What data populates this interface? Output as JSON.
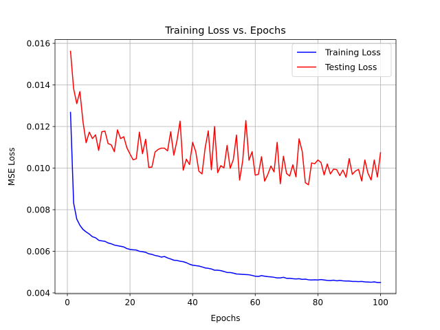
{
  "chart_data": {
    "type": "line",
    "title": "Training Loss vs. Epochs",
    "xlabel": "Epochs",
    "ylabel": "MSE Loss",
    "xlim": [
      -3.95,
      104.95
    ],
    "ylim": [
      0.00396,
      0.01618
    ],
    "x_ticks": [
      0,
      20,
      40,
      60,
      80,
      100
    ],
    "y_ticks": [
      0.004,
      0.006,
      0.008,
      0.01,
      0.012,
      0.014,
      0.016
    ],
    "x_tick_labels": [
      "0",
      "20",
      "40",
      "60",
      "80",
      "100"
    ],
    "y_tick_labels": [
      "0.004",
      "0.006",
      "0.008",
      "0.010",
      "0.012",
      "0.014",
      "0.016"
    ],
    "grid": true,
    "legend_position": "top-right",
    "x": [
      1,
      2,
      3,
      4,
      5,
      6,
      7,
      8,
      9,
      10,
      11,
      12,
      13,
      14,
      15,
      16,
      17,
      18,
      19,
      20,
      21,
      22,
      23,
      24,
      25,
      26,
      27,
      28,
      29,
      30,
      31,
      32,
      33,
      34,
      35,
      36,
      37,
      38,
      39,
      40,
      41,
      42,
      43,
      44,
      45,
      46,
      47,
      48,
      49,
      50,
      51,
      52,
      53,
      54,
      55,
      56,
      57,
      58,
      59,
      60,
      61,
      62,
      63,
      64,
      65,
      66,
      67,
      68,
      69,
      70,
      71,
      72,
      73,
      74,
      75,
      76,
      77,
      78,
      79,
      80,
      81,
      82,
      83,
      84,
      85,
      86,
      87,
      88,
      89,
      90,
      91,
      92,
      93,
      94,
      95,
      96,
      97,
      98,
      99,
      100
    ],
    "series": [
      {
        "name": "Training Loss",
        "color": "#0000ff",
        "values": [
          0.01268,
          0.00832,
          0.00755,
          0.00725,
          0.00705,
          0.00693,
          0.00683,
          0.0067,
          0.00665,
          0.00653,
          0.0065,
          0.00648,
          0.0064,
          0.00636,
          0.0063,
          0.00627,
          0.00624,
          0.00621,
          0.00613,
          0.00609,
          0.00607,
          0.00606,
          0.006,
          0.00598,
          0.00595,
          0.00588,
          0.00585,
          0.0058,
          0.00577,
          0.00572,
          0.00575,
          0.00568,
          0.00563,
          0.00557,
          0.00556,
          0.00552,
          0.0055,
          0.00545,
          0.00538,
          0.00533,
          0.00531,
          0.00529,
          0.00525,
          0.0052,
          0.00518,
          0.00515,
          0.00509,
          0.00509,
          0.00507,
          0.00503,
          0.00498,
          0.00498,
          0.00495,
          0.00491,
          0.0049,
          0.00489,
          0.00488,
          0.00487,
          0.00484,
          0.0048,
          0.00479,
          0.00483,
          0.0048,
          0.00478,
          0.00477,
          0.00475,
          0.00472,
          0.00472,
          0.00475,
          0.0047,
          0.0047,
          0.00468,
          0.00467,
          0.00468,
          0.00465,
          0.00466,
          0.00463,
          0.00462,
          0.00463,
          0.00462,
          0.00464,
          0.00462,
          0.0046,
          0.00459,
          0.00461,
          0.00458,
          0.0046,
          0.00458,
          0.00457,
          0.00457,
          0.00455,
          0.00455,
          0.00454,
          0.00455,
          0.00453,
          0.00452,
          0.00451,
          0.00453,
          0.0045,
          0.0045
        ]
      },
      {
        "name": "Testing Loss",
        "color": "#ff0000",
        "values": [
          0.01562,
          0.01382,
          0.0131,
          0.01368,
          0.01222,
          0.01122,
          0.01173,
          0.01142,
          0.0116,
          0.01085,
          0.01175,
          0.01178,
          0.01118,
          0.01112,
          0.01079,
          0.01184,
          0.01142,
          0.01151,
          0.01098,
          0.01068,
          0.0104,
          0.01045,
          0.01173,
          0.01069,
          0.01139,
          0.01003,
          0.01005,
          0.01077,
          0.0109,
          0.01096,
          0.01096,
          0.01083,
          0.01175,
          0.01062,
          0.01132,
          0.01226,
          0.0099,
          0.01043,
          0.01017,
          0.01124,
          0.01079,
          0.00985,
          0.00972,
          0.01097,
          0.01179,
          0.00992,
          0.012,
          0.00978,
          0.01012,
          0.01001,
          0.01109,
          0.00999,
          0.01041,
          0.01159,
          0.00942,
          0.01036,
          0.01229,
          0.01038,
          0.01079,
          0.00966,
          0.0097,
          0.01055,
          0.00937,
          0.00969,
          0.0101,
          0.00982,
          0.01124,
          0.00925,
          0.01057,
          0.00974,
          0.00962,
          0.01016,
          0.00958,
          0.01141,
          0.0108,
          0.0093,
          0.0092,
          0.01025,
          0.01021,
          0.01039,
          0.01027,
          0.00967,
          0.0102,
          0.00972,
          0.00995,
          0.00993,
          0.00964,
          0.00991,
          0.00956,
          0.01046,
          0.0097,
          0.00986,
          0.00994,
          0.00938,
          0.01039,
          0.00975,
          0.00943,
          0.01039,
          0.00957,
          0.01074
        ]
      }
    ]
  }
}
